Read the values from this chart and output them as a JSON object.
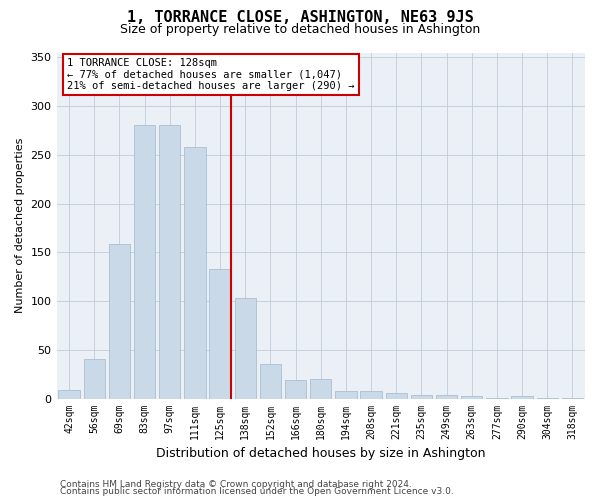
{
  "title": "1, TORRANCE CLOSE, ASHINGTON, NE63 9JS",
  "subtitle": "Size of property relative to detached houses in Ashington",
  "xlabel": "Distribution of detached houses by size in Ashington",
  "ylabel": "Number of detached properties",
  "categories": [
    "42sqm",
    "56sqm",
    "69sqm",
    "83sqm",
    "97sqm",
    "111sqm",
    "125sqm",
    "138sqm",
    "152sqm",
    "166sqm",
    "180sqm",
    "194sqm",
    "208sqm",
    "221sqm",
    "235sqm",
    "249sqm",
    "263sqm",
    "277sqm",
    "290sqm",
    "304sqm",
    "318sqm"
  ],
  "values": [
    9,
    41,
    159,
    281,
    281,
    258,
    133,
    103,
    35,
    19,
    20,
    8,
    8,
    6,
    4,
    4,
    3,
    1,
    3,
    1,
    1
  ],
  "bar_color": "#c9d9e8",
  "bar_edge_color": "#a0b8cc",
  "property_line_label": "1 TORRANCE CLOSE: 128sqm",
  "annotation_line1": "← 77% of detached houses are smaller (1,047)",
  "annotation_line2": "21% of semi-detached houses are larger (290) →",
  "annotation_box_color": "#ffffff",
  "annotation_box_edge_color": "#cc0000",
  "vline_color": "#cc0000",
  "ylim": [
    0,
    355
  ],
  "yticks": [
    0,
    50,
    100,
    150,
    200,
    250,
    300,
    350
  ],
  "background_color": "#eaf0f6",
  "footer_line1": "Contains HM Land Registry data © Crown copyright and database right 2024.",
  "footer_line2": "Contains public sector information licensed under the Open Government Licence v3.0.",
  "title_fontsize": 11,
  "subtitle_fontsize": 9,
  "ylabel_fontsize": 8,
  "xlabel_fontsize": 9,
  "tick_fontsize": 7,
  "ytick_fontsize": 8,
  "annotation_fontsize": 7.5,
  "footer_fontsize": 6.5
}
